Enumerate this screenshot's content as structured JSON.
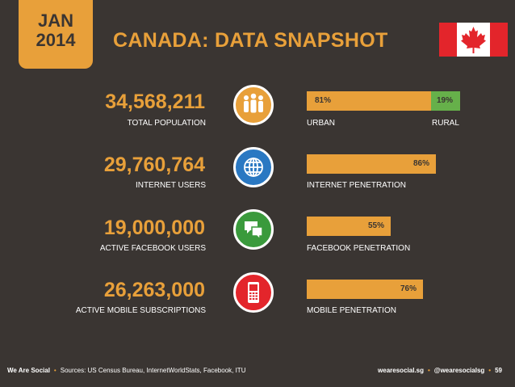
{
  "badge": {
    "month": "JAN",
    "year": "2014"
  },
  "title": "CANADA: DATA SNAPSHOT",
  "colors": {
    "orange": "#e8a03a",
    "green": "#66b04a",
    "red": "#e3252b",
    "blue": "#2a78c2",
    "teal": "#3a9a3c",
    "background": "#3a3532"
  },
  "stats": [
    {
      "value": "34,568,211",
      "label": "TOTAL POPULATION",
      "icon": "people-icon",
      "icon_color": "#e8a03a"
    },
    {
      "value": "29,760,764",
      "label": "INTERNET USERS",
      "icon": "globe-icon",
      "icon_color": "#2a78c2"
    },
    {
      "value": "19,000,000",
      "label": "ACTIVE FACEBOOK USERS",
      "icon": "speech-bubbles-icon",
      "icon_color": "#3a9a3c"
    },
    {
      "value": "26,263,000",
      "label": "ACTIVE MOBILE SUBSCRIPTIONS",
      "icon": "mobile-phone-icon",
      "icon_color": "#e3252b"
    }
  ],
  "bars": [
    {
      "urban_pct": "81%",
      "rural_pct": "19%",
      "urban_label": "URBAN",
      "rural_label": "RURAL",
      "fraction": 0.81
    },
    {
      "pct": "86%",
      "label": "INTERNET PENETRATION",
      "fraction": 0.86
    },
    {
      "pct": "55%",
      "label": "FACEBOOK PENETRATION",
      "fraction": 0.55
    },
    {
      "pct": "76%",
      "label": "MOBILE PENETRATION",
      "fraction": 0.76
    }
  ],
  "footer": {
    "brand": "We Are Social",
    "sources": "Sources: US Census Bureau, InternetWorldStats, Facebook, ITU",
    "site": "wearesocial.sg",
    "handle": "@wearesocialsg",
    "page": "59"
  }
}
